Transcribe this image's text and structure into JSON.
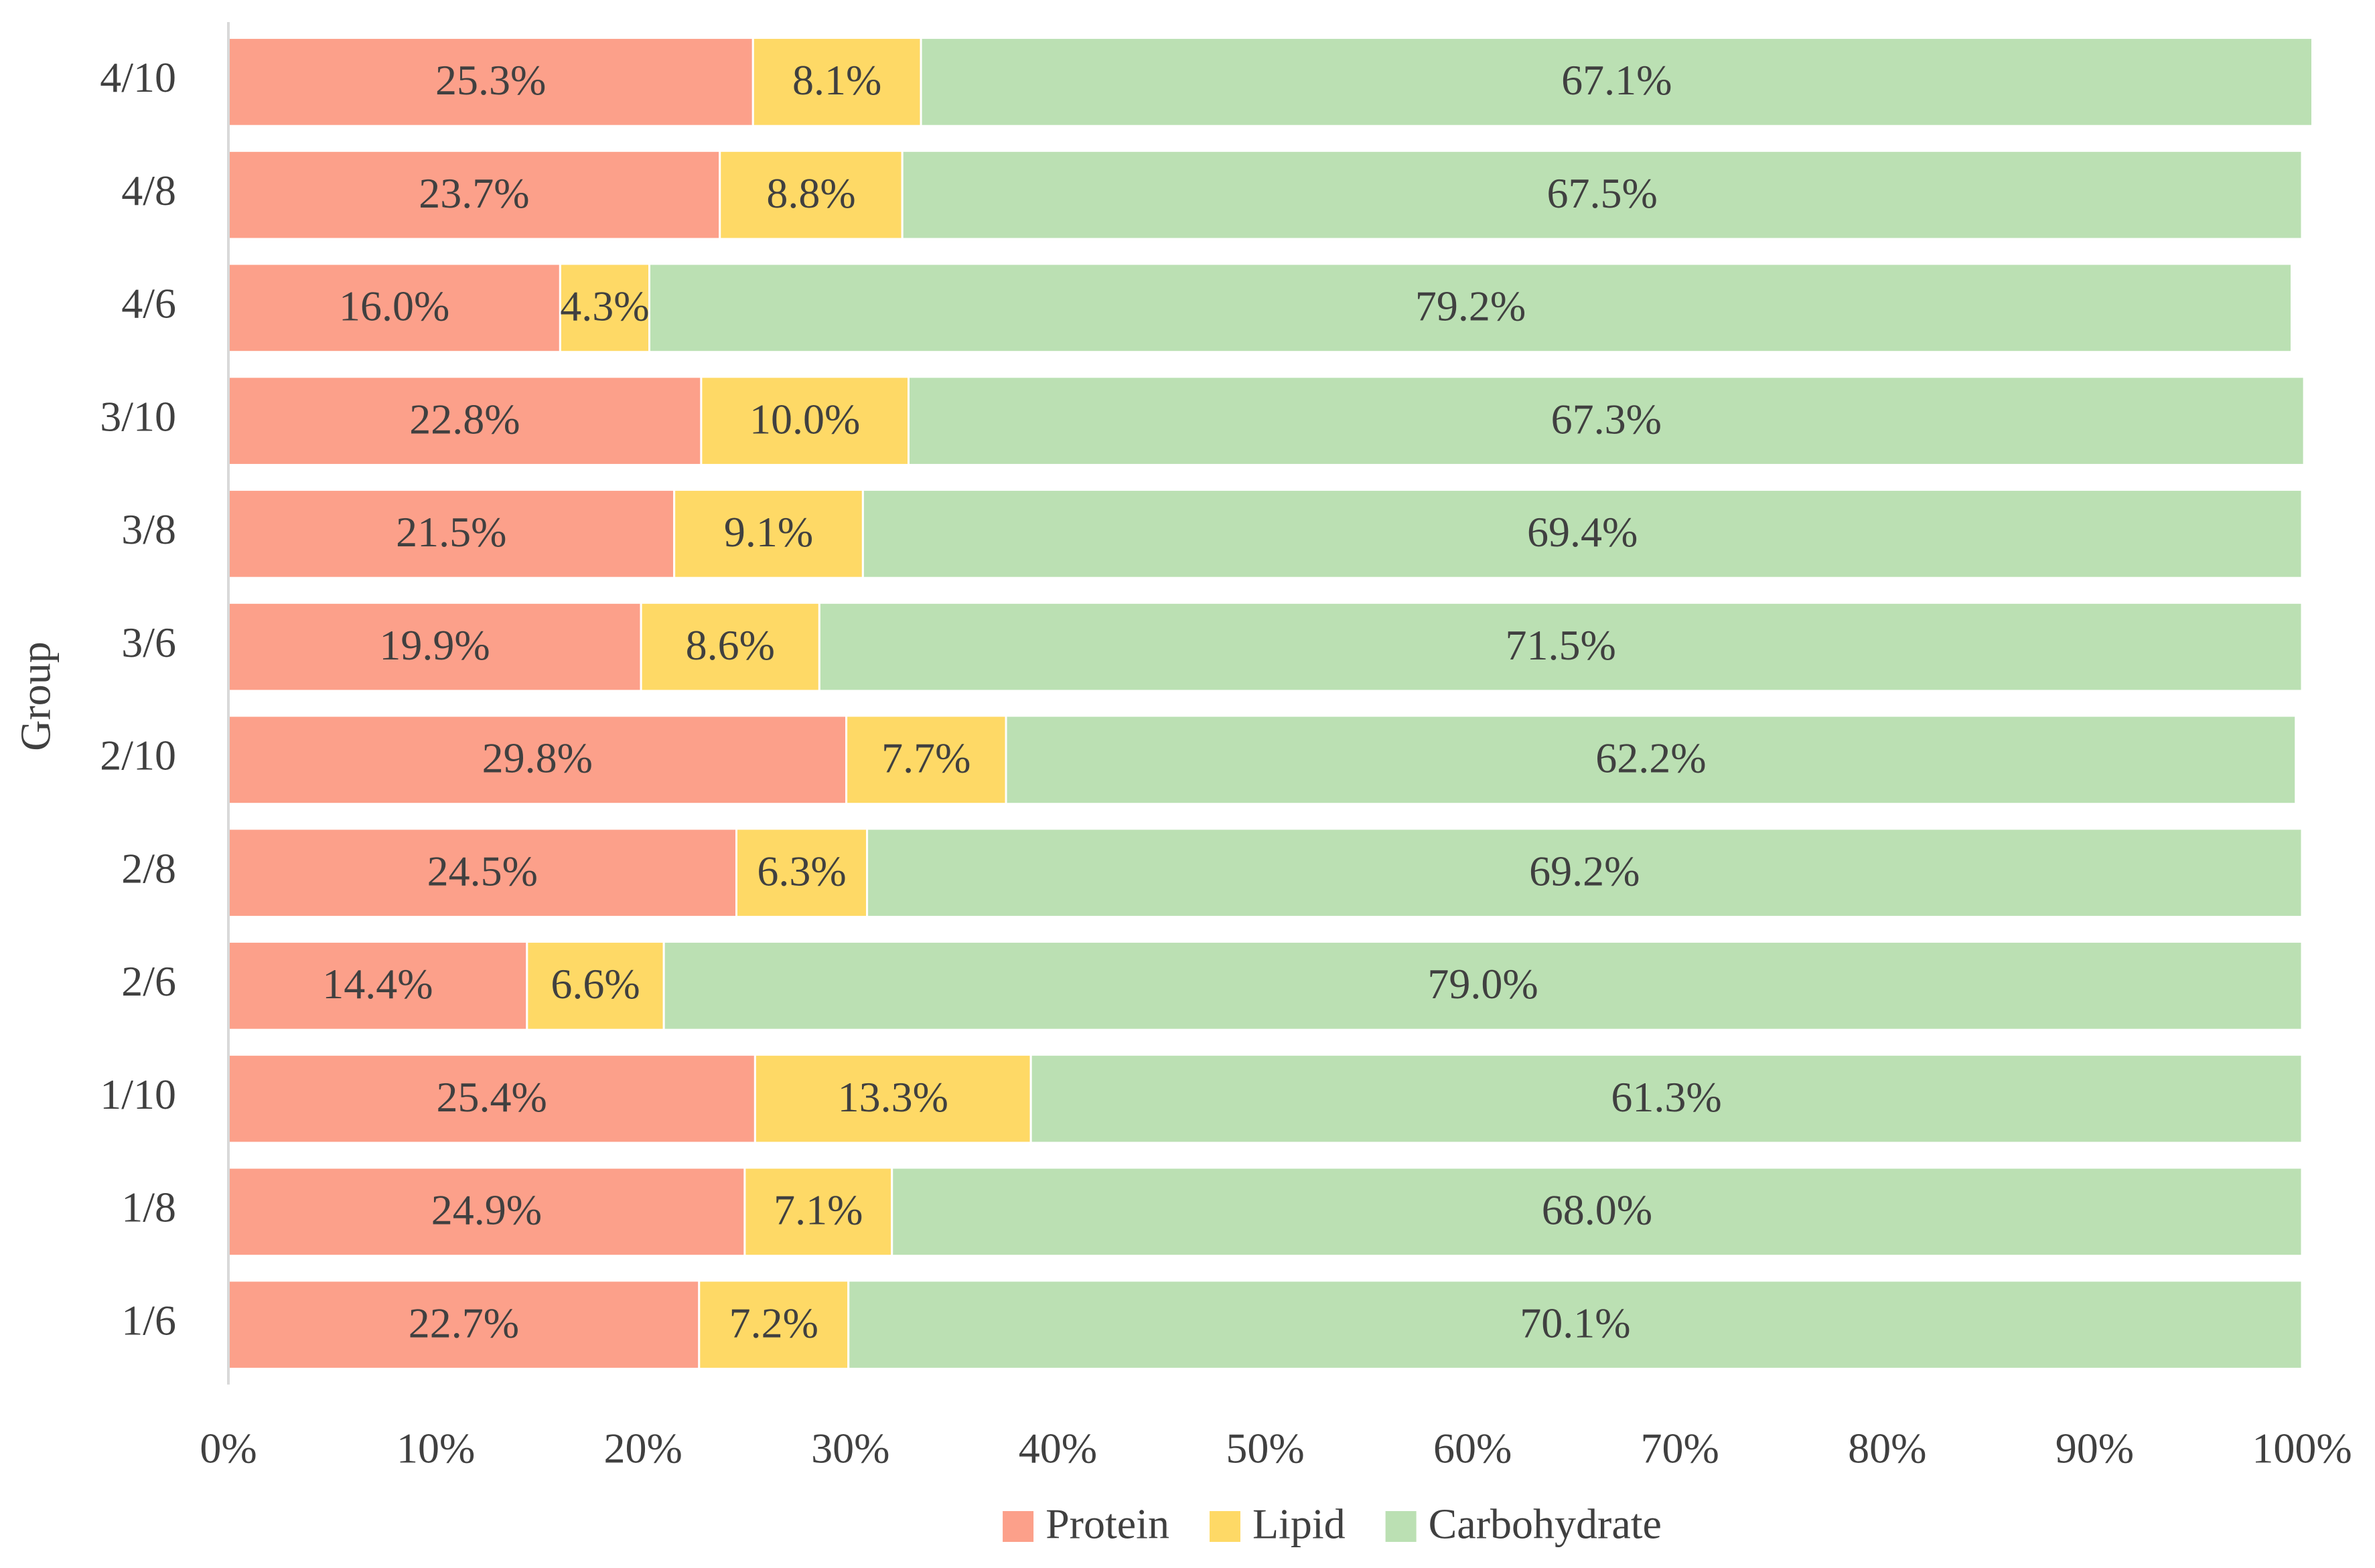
{
  "chart_data": {
    "type": "stacked-bar-horizontal",
    "y_label": "Group",
    "categories": [
      "4/10",
      "4/8",
      "4/6",
      "3/10",
      "3/8",
      "3/6",
      "2/10",
      "2/8",
      "2/6",
      "1/10",
      "1/8",
      "1/6"
    ],
    "series": [
      {
        "name": "Protein",
        "color": "#fca08a",
        "values": [
          25.3,
          23.7,
          16.0,
          22.8,
          21.5,
          19.9,
          29.8,
          24.5,
          14.4,
          25.4,
          24.9,
          22.7
        ],
        "value_labels": [
          "25.3%",
          "23.7%",
          "16.0%",
          "22.8%",
          "21.5%",
          "19.9%",
          "29.8%",
          "24.5%",
          "14.4%",
          "25.4%",
          "24.9%",
          "22.7%"
        ]
      },
      {
        "name": "Lipid",
        "color": "#fed966",
        "values": [
          8.1,
          8.8,
          4.3,
          10.0,
          9.1,
          8.6,
          7.7,
          6.3,
          6.6,
          13.3,
          7.1,
          7.2
        ],
        "value_labels": [
          "8.1%",
          "8.8%",
          "4.3%",
          "10.0%",
          "9.1%",
          "8.6%",
          "7.7%",
          "6.3%",
          "6.6%",
          "13.3%",
          "7.1%",
          "7.2%"
        ]
      },
      {
        "name": "Carbohydrate",
        "color": "#bbe0b3",
        "values": [
          67.1,
          67.5,
          79.2,
          67.3,
          69.4,
          71.5,
          62.2,
          69.2,
          79.0,
          61.3,
          68.0,
          70.1
        ],
        "value_labels": [
          "67.1%",
          "67.5%",
          "79.2%",
          "67.3%",
          "69.4%",
          "71.5%",
          "62.2%",
          "69.2%",
          "79.0%",
          "61.3%",
          "68.0%",
          "70.1%"
        ]
      }
    ],
    "xlim": [
      0,
      100
    ],
    "xticks": [
      {
        "value": 0,
        "label": "0%"
      },
      {
        "value": 10,
        "label": "10%"
      },
      {
        "value": 20,
        "label": "20%"
      },
      {
        "value": 30,
        "label": "30%"
      },
      {
        "value": 40,
        "label": "40%"
      },
      {
        "value": 50,
        "label": "50%"
      },
      {
        "value": 60,
        "label": "60%"
      },
      {
        "value": 70,
        "label": "70%"
      },
      {
        "value": 80,
        "label": "80%"
      },
      {
        "value": 90,
        "label": "90%"
      },
      {
        "value": 100,
        "label": "100%"
      }
    ],
    "legend": "bottom"
  }
}
